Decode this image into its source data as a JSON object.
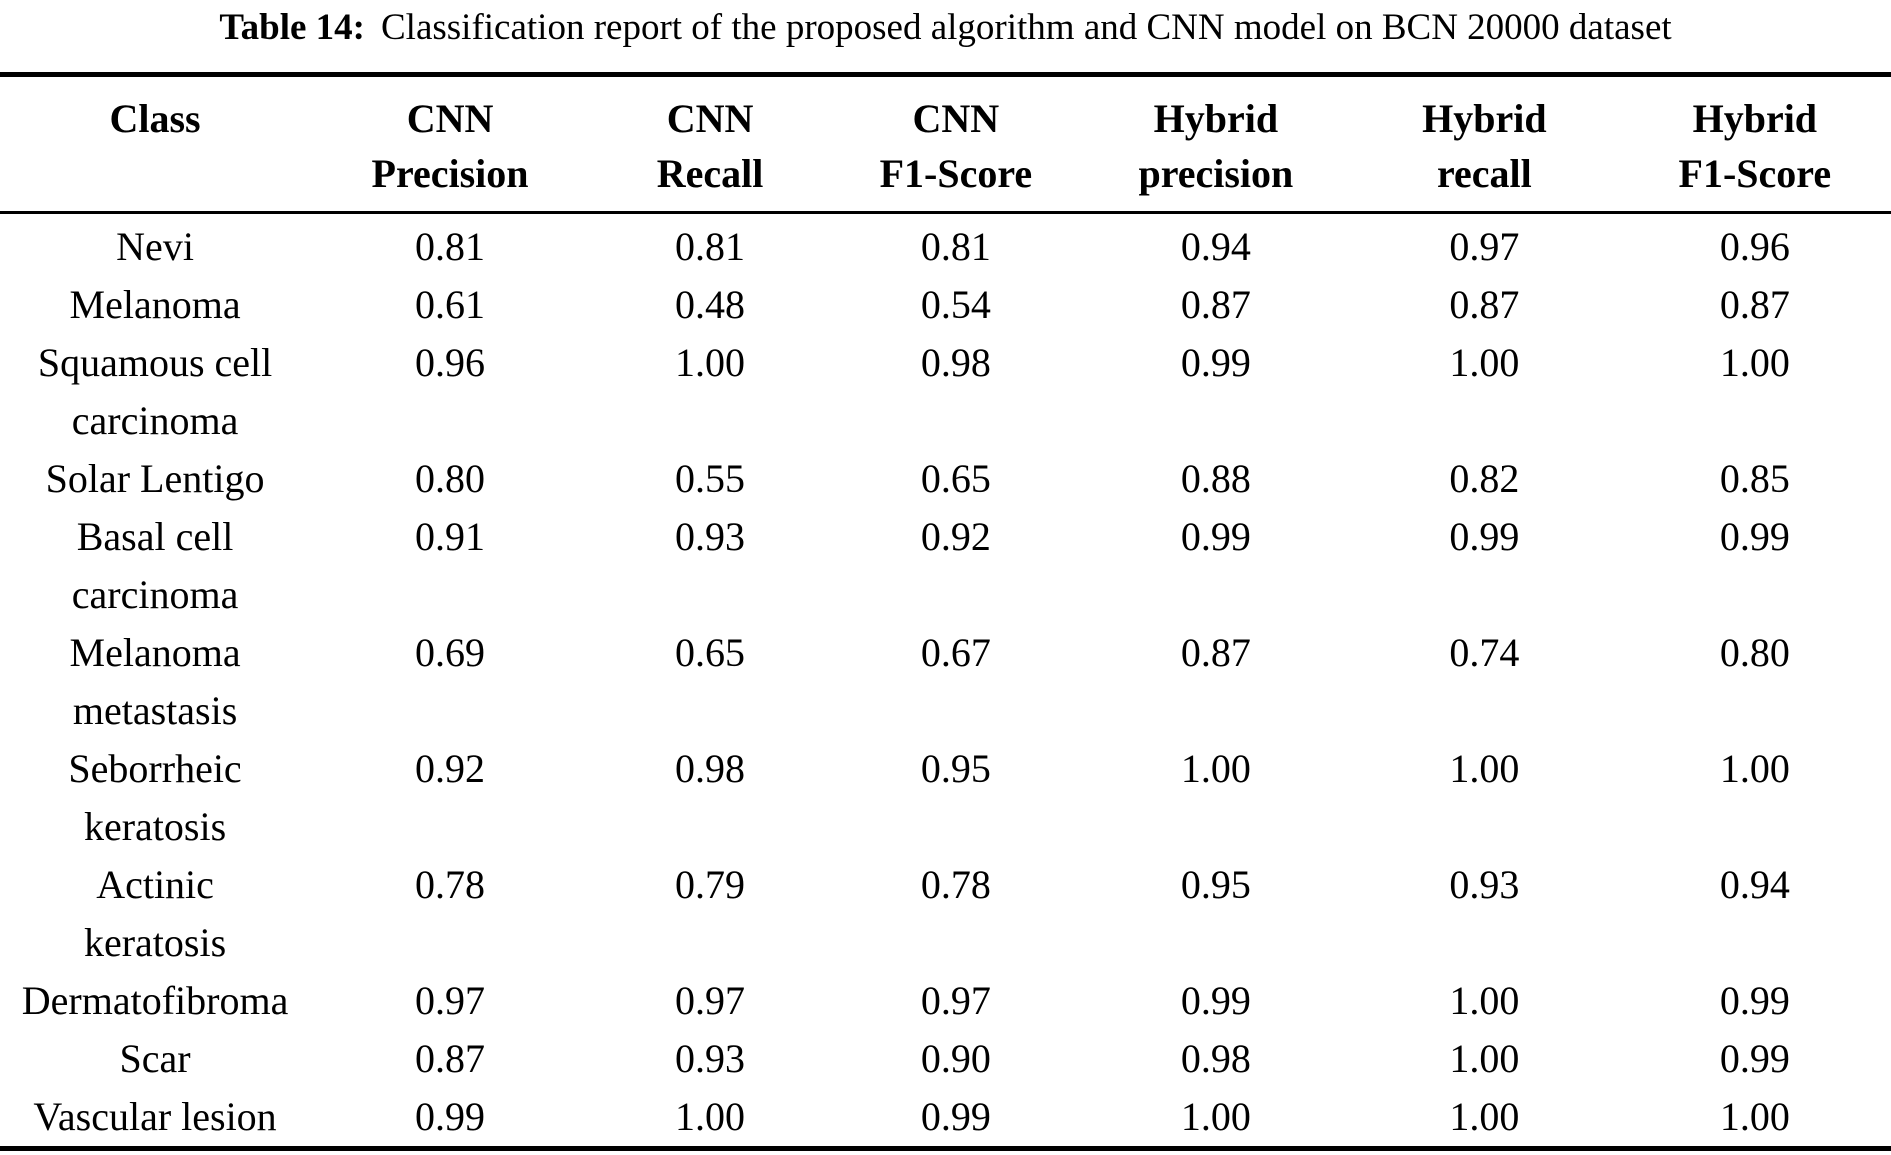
{
  "caption": {
    "label": "Table 14:",
    "text": "Classification report of the proposed algorithm and CNN model on BCN 20000 dataset"
  },
  "table": {
    "columns": [
      "Class",
      "CNN\nPrecision",
      "CNN\nRecall",
      "CNN\nF1-Score",
      "Hybrid\nprecision",
      "Hybrid\nrecall",
      "Hybrid\nF1-Score"
    ],
    "rows": [
      {
        "class": "Nevi",
        "values": [
          "0.81",
          "0.81",
          "0.81",
          "0.94",
          "0.97",
          "0.96"
        ]
      },
      {
        "class": "Melanoma",
        "values": [
          "0.61",
          "0.48",
          "0.54",
          "0.87",
          "0.87",
          "0.87"
        ]
      },
      {
        "class": "Squamous cell\ncarcinoma",
        "values": [
          "0.96",
          "1.00",
          "0.98",
          "0.99",
          "1.00",
          "1.00"
        ]
      },
      {
        "class": "Solar Lentigo",
        "values": [
          "0.80",
          "0.55",
          "0.65",
          "0.88",
          "0.82",
          "0.85"
        ]
      },
      {
        "class": "Basal cell\ncarcinoma",
        "values": [
          "0.91",
          "0.93",
          "0.92",
          "0.99",
          "0.99",
          "0.99"
        ]
      },
      {
        "class": "Melanoma\nmetastasis",
        "values": [
          "0.69",
          "0.65",
          "0.67",
          "0.87",
          "0.74",
          "0.80"
        ]
      },
      {
        "class": "Seborrheic\nkeratosis",
        "values": [
          "0.92",
          "0.98",
          "0.95",
          "1.00",
          "1.00",
          "1.00"
        ]
      },
      {
        "class": "Actinic\nkeratosis",
        "values": [
          "0.78",
          "0.79",
          "0.78",
          "0.95",
          "0.93",
          "0.94"
        ]
      },
      {
        "class": "Dermatofibroma",
        "values": [
          "0.97",
          "0.97",
          "0.97",
          "0.99",
          "1.00",
          "0.99"
        ]
      },
      {
        "class": "Scar",
        "values": [
          "0.87",
          "0.93",
          "0.90",
          "0.98",
          "1.00",
          "0.99"
        ]
      },
      {
        "class": "Vascular lesion",
        "values": [
          "0.99",
          "1.00",
          "0.99",
          "1.00",
          "1.00",
          "1.00"
        ]
      }
    ]
  },
  "colors": {
    "background": "#ffffff",
    "text": "#000000",
    "rule": "#000000"
  }
}
